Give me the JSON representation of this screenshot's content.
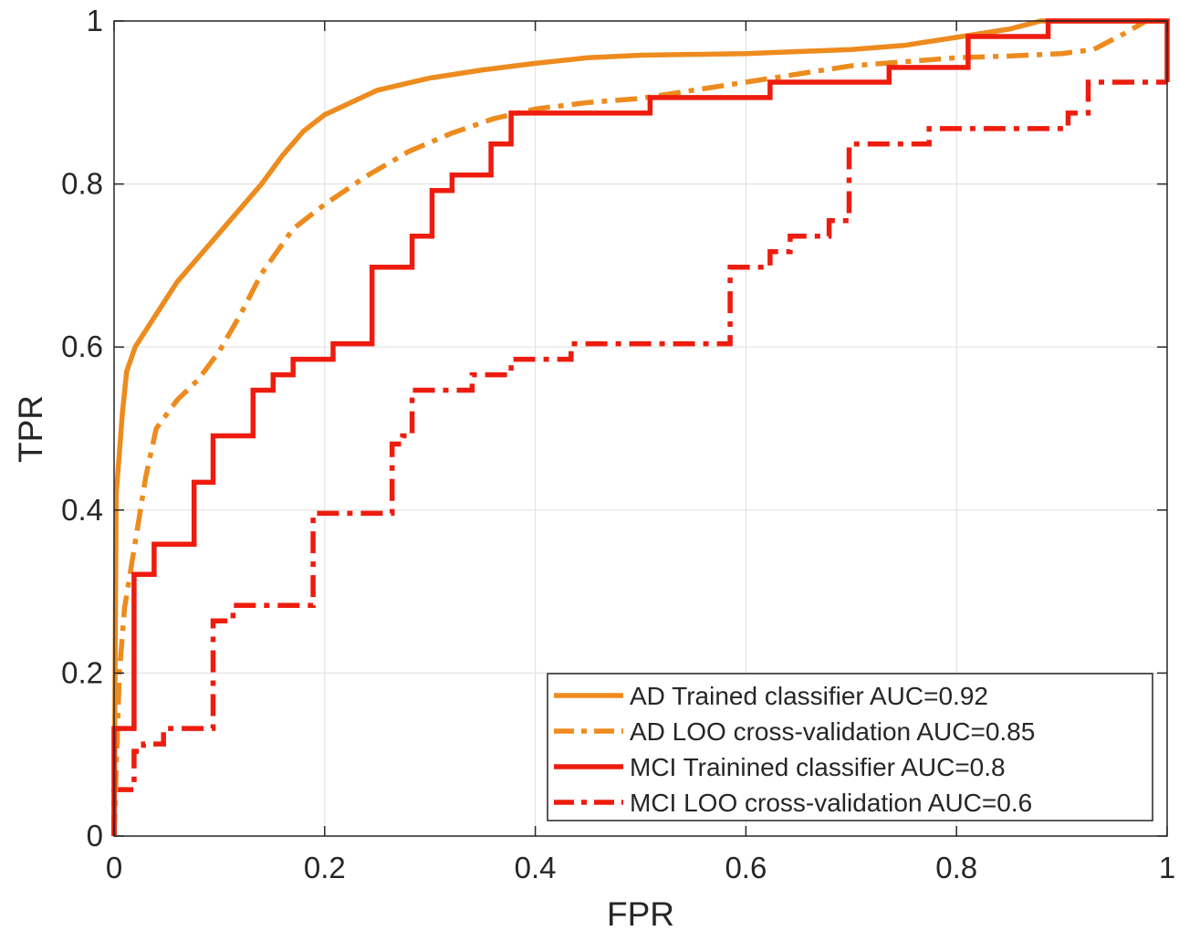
{
  "chart_data": {
    "type": "line",
    "title": "",
    "xlabel": "FPR",
    "ylabel": "TPR",
    "xlim": [
      0,
      1
    ],
    "ylim": [
      0,
      1
    ],
    "xticks": [
      0,
      0.2,
      0.4,
      0.6,
      0.8,
      1
    ],
    "yticks": [
      0,
      0.2,
      0.4,
      0.6,
      0.8,
      1
    ],
    "xtick_labels": [
      "0",
      "0.2",
      "0.4",
      "0.6",
      "0.8",
      "1"
    ],
    "ytick_labels": [
      "0",
      "0.2",
      "0.4",
      "0.6",
      "0.8",
      "1"
    ],
    "grid": true,
    "legend_position": "bottom-right",
    "series": [
      {
        "name": "AD Trained classifier AUC=0.92",
        "color": "#ED8B1E",
        "style": "solid",
        "x": [
          0,
          0.002,
          0.005,
          0.008,
          0.012,
          0.02,
          0.03,
          0.045,
          0.06,
          0.08,
          0.1,
          0.12,
          0.14,
          0.16,
          0.18,
          0.2,
          0.225,
          0.25,
          0.3,
          0.35,
          0.4,
          0.45,
          0.5,
          0.6,
          0.7,
          0.75,
          0.8,
          0.85,
          0.88,
          0.9,
          0.95,
          1
        ],
        "y": [
          0,
          0.42,
          0.47,
          0.52,
          0.57,
          0.6,
          0.62,
          0.65,
          0.68,
          0.71,
          0.74,
          0.77,
          0.8,
          0.835,
          0.865,
          0.885,
          0.9,
          0.915,
          0.93,
          0.94,
          0.948,
          0.955,
          0.958,
          0.96,
          0.965,
          0.97,
          0.98,
          0.99,
          1.0,
          1.0,
          1.0,
          1.0
        ]
      },
      {
        "name": "AD LOO cross-validation  AUC=0.85",
        "color": "#ED8B1E",
        "style": "dashdot",
        "x": [
          0,
          0.005,
          0.01,
          0.02,
          0.03,
          0.04,
          0.06,
          0.08,
          0.1,
          0.12,
          0.14,
          0.17,
          0.2,
          0.24,
          0.28,
          0.32,
          0.36,
          0.4,
          0.45,
          0.5,
          0.55,
          0.6,
          0.65,
          0.7,
          0.75,
          0.8,
          0.85,
          0.9,
          0.93,
          0.96,
          0.98,
          1
        ],
        "y": [
          0,
          0.2,
          0.28,
          0.36,
          0.44,
          0.5,
          0.535,
          0.56,
          0.595,
          0.64,
          0.69,
          0.745,
          0.775,
          0.81,
          0.84,
          0.862,
          0.88,
          0.892,
          0.9,
          0.905,
          0.915,
          0.925,
          0.935,
          0.945,
          0.95,
          0.955,
          0.957,
          0.96,
          0.965,
          0.985,
          1.0,
          1.0
        ]
      },
      {
        "name": "MCI Trainined classifier AUC=0.8",
        "color": "#EE1C0E",
        "style": "solid",
        "x": [
          0,
          0,
          0.019,
          0.019,
          0.038,
          0.038,
          0.076,
          0.076,
          0.094,
          0.094,
          0.132,
          0.132,
          0.151,
          0.151,
          0.17,
          0.17,
          0.208,
          0.208,
          0.245,
          0.245,
          0.283,
          0.283,
          0.302,
          0.302,
          0.321,
          0.321,
          0.358,
          0.358,
          0.377,
          0.377,
          0.509,
          0.509,
          0.585,
          0.585,
          0.623,
          0.623,
          0.736,
          0.736,
          0.811,
          0.811,
          0.887,
          0.887,
          1,
          1
        ],
        "y": [
          0,
          0.132,
          0.132,
          0.321,
          0.321,
          0.358,
          0.358,
          0.434,
          0.434,
          0.491,
          0.491,
          0.547,
          0.547,
          0.566,
          0.566,
          0.585,
          0.585,
          0.604,
          0.604,
          0.698,
          0.698,
          0.736,
          0.736,
          0.792,
          0.792,
          0.811,
          0.811,
          0.849,
          0.849,
          0.887,
          0.887,
          0.906,
          0.906,
          0.906,
          0.906,
          0.925,
          0.925,
          0.943,
          0.943,
          0.981,
          0.981,
          1.0,
          1.0,
          0.925
        ]
      },
      {
        "name": "MCI LOO cross-validation AUC=0.6",
        "color": "#EE1C0E",
        "style": "dashdot",
        "x": [
          0,
          0,
          0.019,
          0.019,
          0.028,
          0.028,
          0.047,
          0.047,
          0.094,
          0.094,
          0.113,
          0.113,
          0.189,
          0.189,
          0.264,
          0.264,
          0.274,
          0.274,
          0.283,
          0.283,
          0.34,
          0.34,
          0.377,
          0.377,
          0.434,
          0.434,
          0.585,
          0.585,
          0.623,
          0.623,
          0.642,
          0.642,
          0.679,
          0.679,
          0.698,
          0.698,
          0.755,
          0.755,
          0.774,
          0.774,
          0.906,
          0.906,
          0.925,
          0.925,
          1
        ],
        "y": [
          0,
          0.057,
          0.057,
          0.104,
          0.104,
          0.113,
          0.113,
          0.132,
          0.132,
          0.264,
          0.264,
          0.283,
          0.283,
          0.396,
          0.396,
          0.481,
          0.481,
          0.491,
          0.491,
          0.547,
          0.547,
          0.566,
          0.566,
          0.585,
          0.585,
          0.604,
          0.604,
          0.698,
          0.698,
          0.717,
          0.717,
          0.736,
          0.736,
          0.755,
          0.755,
          0.849,
          0.849,
          0.849,
          0.849,
          0.868,
          0.868,
          0.887,
          0.887,
          0.925,
          0.925
        ]
      }
    ]
  }
}
